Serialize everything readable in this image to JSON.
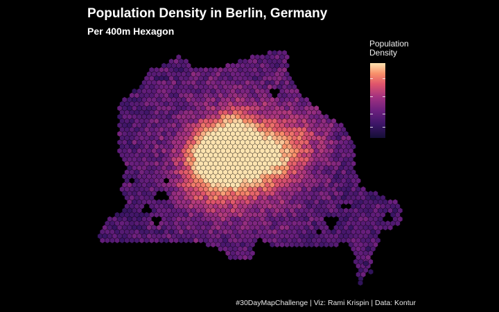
{
  "title": "Population Density in Berlin, Germany",
  "subtitle": "Per 400m Hexagon",
  "caption": "#30DayMapChallenge | Viz: Rami Krispin | Data: Kontur",
  "legend": {
    "title_line1": "Population",
    "title_line2": "Density",
    "colors": [
      "#150f36",
      "#3b1566",
      "#6a1f7e",
      "#a33280",
      "#e0556b",
      "#f8906a",
      "#fde3b0"
    ]
  },
  "map": {
    "region": "Berlin",
    "palette": "magma",
    "background": "#000000"
  }
}
